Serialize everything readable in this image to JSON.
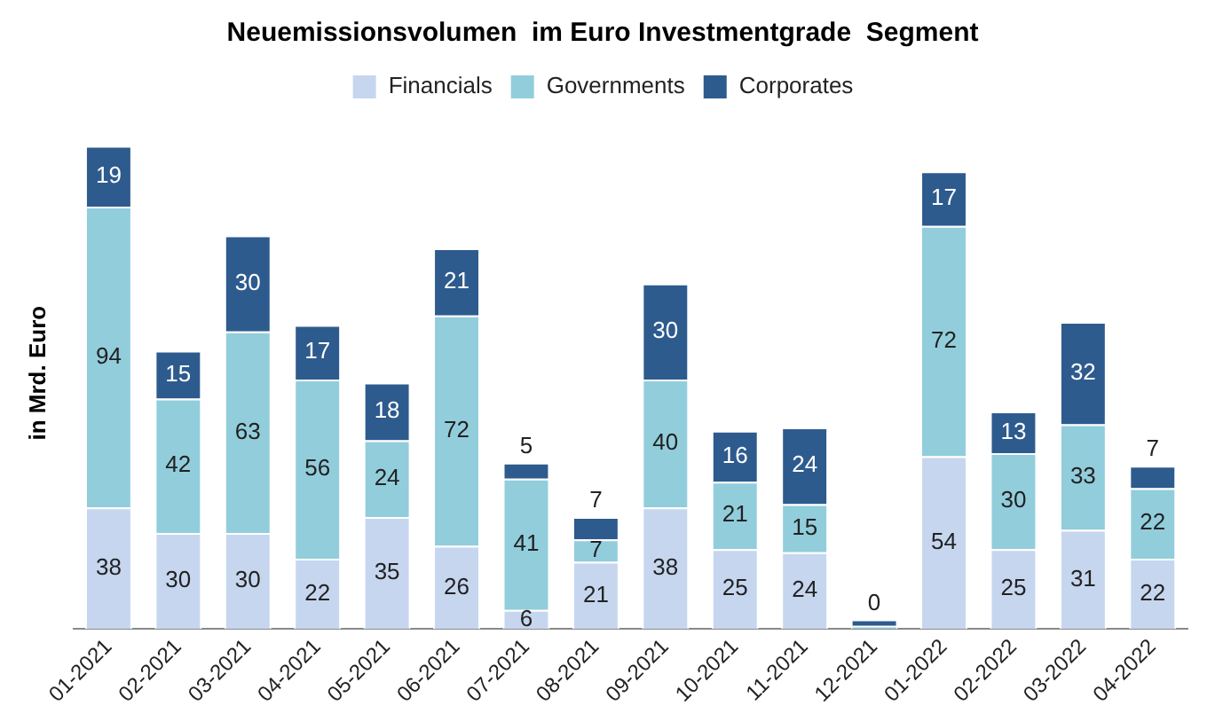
{
  "chart_data": {
    "type": "bar",
    "stacked": true,
    "title": "Neuemissionsvolumen  im Euro Investmentgrade  Segment",
    "ylabel": "in Mrd. Euro",
    "legend": "top",
    "grid": false,
    "categories": [
      "01-2021",
      "02-2021",
      "03-2021",
      "04-2021",
      "05-2021",
      "06-2021",
      "07-2021",
      "08-2021",
      "09-2021",
      "10-2021",
      "11-2021",
      "12-2021",
      "01-2022",
      "02-2022",
      "03-2022",
      "04-2022"
    ],
    "series": [
      {
        "name": "Financials",
        "color": "#c6d6ef",
        "values": [
          38,
          30,
          30,
          22,
          35,
          26,
          6,
          21,
          38,
          25,
          24,
          0,
          54,
          25,
          31,
          22
        ],
        "value_labels": [
          "38",
          "30",
          "30",
          "22",
          "35",
          "26",
          "6",
          "21",
          "38",
          "25",
          "24",
          "0",
          "54",
          "25",
          "31",
          "22"
        ]
      },
      {
        "name": "Governments",
        "color": "#92cddc",
        "values": [
          94,
          42,
          63,
          56,
          24,
          72,
          41,
          7,
          40,
          21,
          15,
          1,
          72,
          30,
          33,
          22
        ],
        "value_labels": [
          "94",
          "42",
          "63",
          "56",
          "24",
          "72",
          "41",
          "7",
          "40",
          "21",
          "15",
          null,
          "72",
          "30",
          "33",
          "22"
        ]
      },
      {
        "name": "Corporates",
        "color": "#2e5b8e",
        "values": [
          19,
          15,
          30,
          17,
          18,
          21,
          5,
          7,
          30,
          16,
          24,
          2,
          17,
          13,
          32,
          7
        ],
        "value_labels": [
          "19",
          "15",
          "30",
          "17",
          "18",
          "21",
          "5",
          "7",
          "30",
          "16",
          "24",
          null,
          "17",
          "13",
          "32",
          "7"
        ]
      }
    ]
  }
}
